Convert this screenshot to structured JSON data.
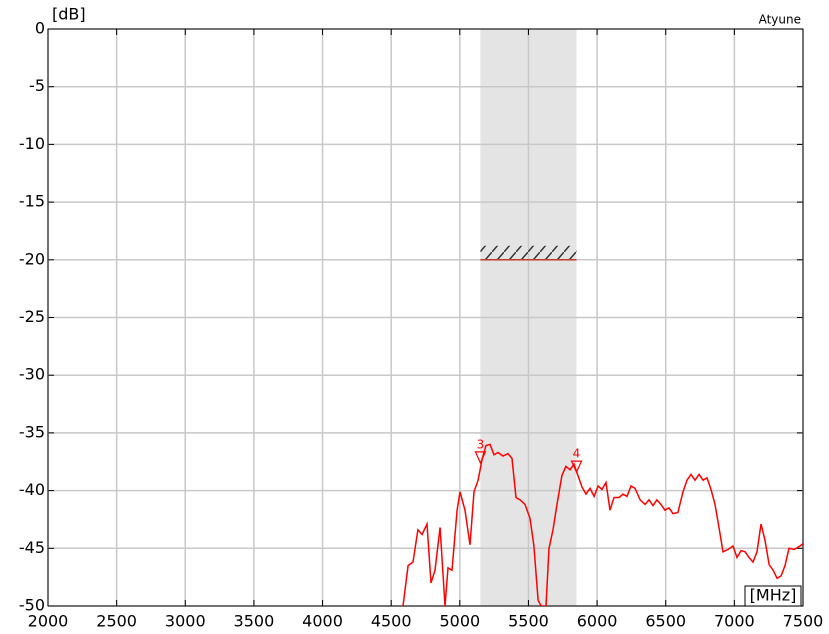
{
  "chart_data": {
    "type": "line",
    "y_label": "[dB]",
    "x_label": "[MHz]",
    "annotation": "Atyune",
    "xlim": [
      2000,
      7500
    ],
    "xticks": [
      2000,
      2500,
      3000,
      3500,
      4000,
      4500,
      5000,
      5500,
      6000,
      6500,
      7000,
      7500
    ],
    "ylim": [
      -50,
      0
    ],
    "yticks": [
      0,
      -5,
      -10,
      -15,
      -20,
      -25,
      -30,
      -35,
      -40,
      -45,
      -50
    ],
    "grid": true,
    "shaded_band": [
      5150,
      5850
    ],
    "limit_line": {
      "value": -20,
      "xrange": [
        5150,
        5850
      ],
      "color": "#c0392b"
    },
    "markers": [
      {
        "label": "3",
        "x": 5150,
        "y": -37.6
      },
      {
        "label": "4",
        "x": 5850,
        "y": -38.4
      }
    ],
    "x": [
      4586,
      4623,
      4659,
      4695,
      4725,
      4761,
      4790,
      4819,
      4856,
      4892,
      4914,
      4943,
      4980,
      5001,
      5038,
      5074,
      5103,
      5133,
      5162,
      5191,
      5220,
      5249,
      5278,
      5314,
      5351,
      5380,
      5409,
      5439,
      5475,
      5511,
      5540,
      5570,
      5592,
      5628,
      5650,
      5679,
      5708,
      5744,
      5773,
      5803,
      5832,
      5861,
      5890,
      5919,
      5948,
      5978,
      6007,
      6036,
      6065,
      6094,
      6123,
      6160,
      6189,
      6218,
      6247,
      6276,
      6313,
      6349,
      6378,
      6407,
      6436,
      6465,
      6495,
      6524,
      6553,
      6589,
      6626,
      6655,
      6684,
      6713,
      6743,
      6772,
      6801,
      6830,
      6859,
      6888,
      6917,
      6954,
      6990,
      7019,
      7048,
      7078,
      7107,
      7136,
      7165,
      7194,
      7223,
      7253,
      7282,
      7311,
      7340,
      7369,
      7398,
      7435,
      7478,
      7500
    ],
    "series": [
      {
        "color": "#ff0000",
        "values": [
          -50,
          -46.5,
          -46.2,
          -43.4,
          -43.8,
          -42.9,
          -48,
          -46.9,
          -43.2,
          -50,
          -46.7,
          -46.9,
          -41.7,
          -40.1,
          -41.7,
          -44.7,
          -40.1,
          -39.1,
          -37.3,
          -36.1,
          -36,
          -36.9,
          -36.7,
          -37,
          -36.8,
          -37.2,
          -40.6,
          -40.8,
          -41.2,
          -42.4,
          -44.8,
          -49.5,
          -50,
          -50,
          -45,
          -43.4,
          -41.2,
          -38.7,
          -37.9,
          -38.2,
          -37.7,
          -38.7,
          -39.7,
          -40.3,
          -39.8,
          -40.5,
          -39.6,
          -39.9,
          -39.3,
          -41.7,
          -40.6,
          -40.6,
          -40.3,
          -40.5,
          -39.6,
          -39.8,
          -40.8,
          -41.2,
          -40.8,
          -41.3,
          -40.8,
          -41.2,
          -41.7,
          -41.5,
          -42,
          -41.9,
          -40.1,
          -39.1,
          -38.6,
          -39.1,
          -38.6,
          -39.1,
          -38.9,
          -39.9,
          -41.2,
          -43.2,
          -45.3,
          -45.1,
          -44.8,
          -45.8,
          -45.2,
          -45.3,
          -45.8,
          -46.2,
          -45.3,
          -42.9,
          -44.3,
          -46.4,
          -46.9,
          -47.6,
          -47.4,
          -46.5,
          -45,
          -45.1,
          -44.8,
          -44.6
        ]
      }
    ]
  }
}
